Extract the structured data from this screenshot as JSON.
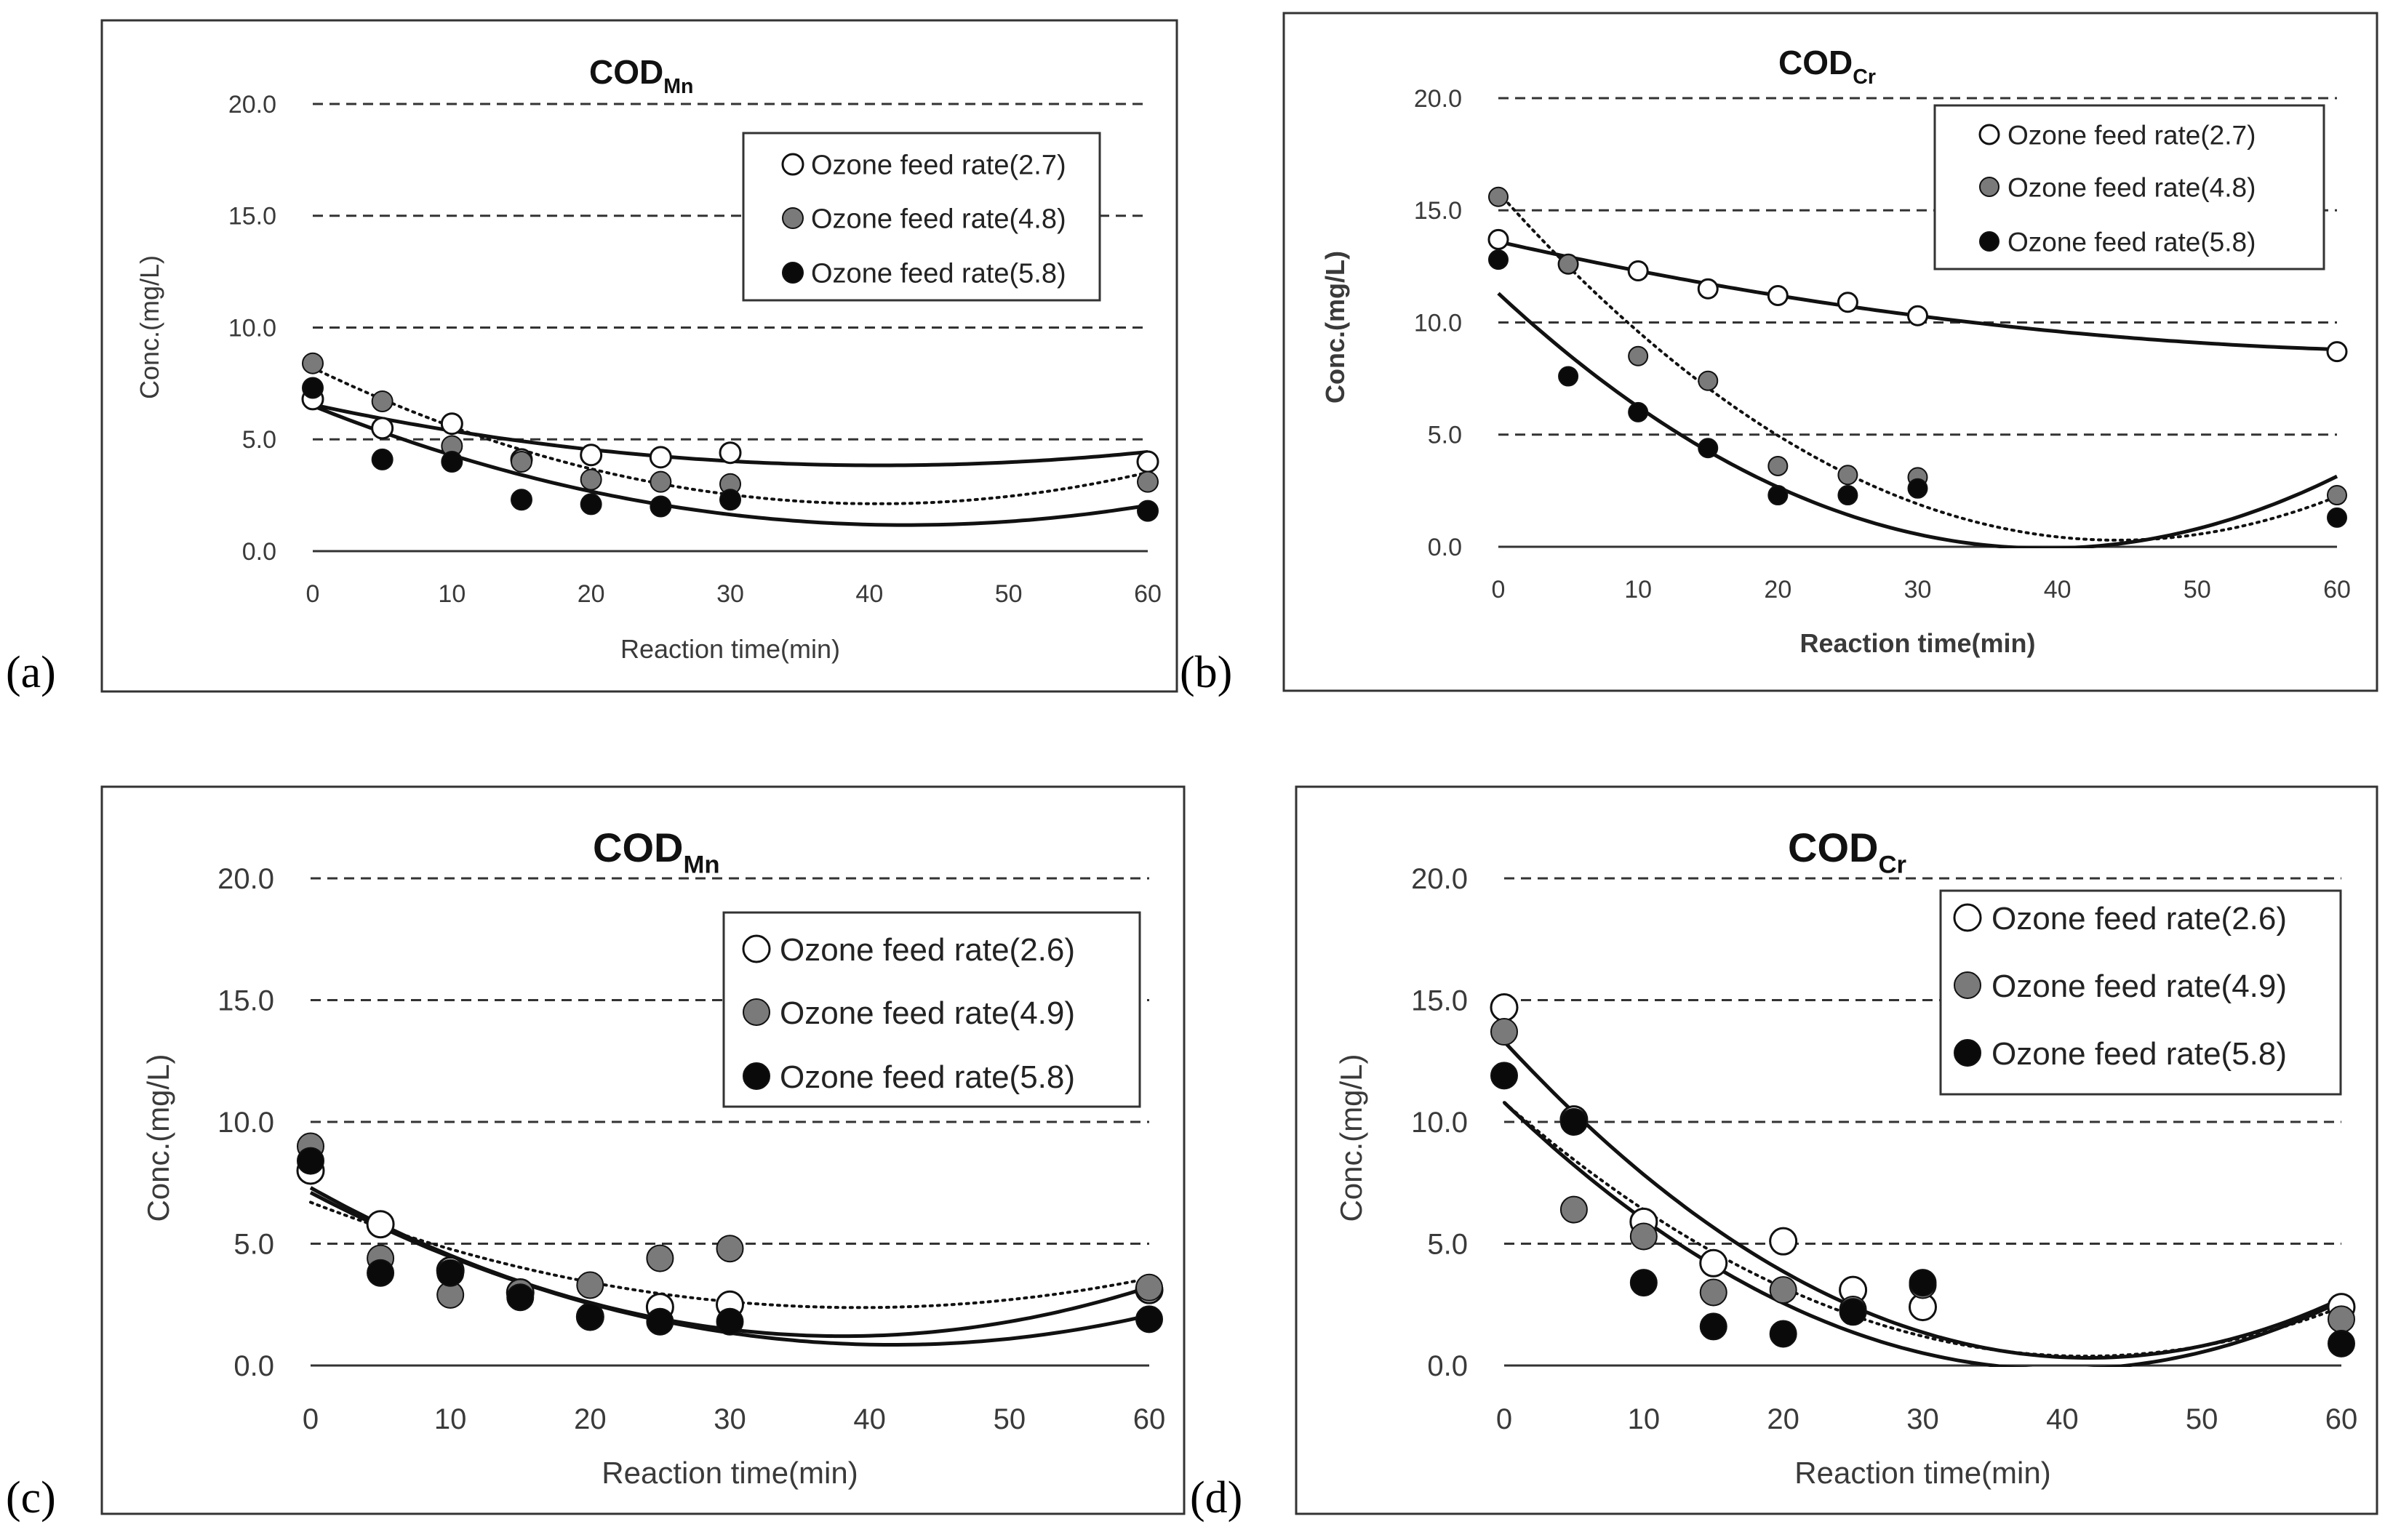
{
  "colors": {
    "open_marker_fill": "#ffffff",
    "gray_marker_fill": "#7a7a7a",
    "black_marker_fill": "#0a0a0a",
    "marker_stroke": "#111111",
    "fit_line": "#111111"
  },
  "chart_data": [
    {
      "panel": "(a)",
      "type": "scatter",
      "title_main": "COD",
      "title_sub": "Mn",
      "xlabel": "Reaction time(min)",
      "ylabel": "Conc.(mg/L)",
      "x_ticks": [
        "0",
        "10",
        "20",
        "30",
        "40",
        "50",
        "60"
      ],
      "y_ticks": [
        "0.0",
        "5.0",
        "10.0",
        "15.0",
        "20.0"
      ],
      "xlim": [
        0,
        60
      ],
      "ylim": [
        0,
        20
      ],
      "grid": true,
      "legend_position": "top-right",
      "x": [
        0,
        5,
        10,
        15,
        20,
        25,
        30,
        60
      ],
      "series": [
        {
          "name": "Ozone feed rate(2.7)",
          "marker": "open",
          "values": [
            6.8,
            5.5,
            5.7,
            4.1,
            4.3,
            4.2,
            4.4,
            4.0
          ],
          "fit": {
            "style": "solid",
            "coef": [
              6.55,
              -0.133,
              0.00163
            ]
          }
        },
        {
          "name": "Ozone feed rate(4.8)",
          "marker": "gray",
          "values": [
            8.4,
            6.7,
            4.7,
            4.0,
            3.2,
            3.1,
            3.0,
            3.1
          ],
          "fit": {
            "style": "dotted",
            "coef": [
              8.2,
              -0.3,
              0.0037
            ]
          }
        },
        {
          "name": "Ozone feed rate(5.8)",
          "marker": "black",
          "values": [
            7.3,
            4.1,
            4.0,
            2.3,
            2.1,
            2.0,
            2.3,
            1.8
          ],
          "fit": {
            "style": "solid",
            "coef": [
              6.5,
              -0.25,
              0.00293
            ]
          }
        }
      ]
    },
    {
      "panel": "(b)",
      "type": "scatter",
      "title_main": "COD",
      "title_sub": "Cr",
      "xlabel": "Reaction time(min)",
      "ylabel": "Conc.(mg/L)",
      "x_ticks": [
        "0",
        "10",
        "20",
        "30",
        "40",
        "50",
        "60"
      ],
      "y_ticks": [
        "0.0",
        "5.0",
        "10.0",
        "15.0",
        "20.0"
      ],
      "xlim": [
        0,
        60
      ],
      "ylim": [
        0,
        20
      ],
      "grid": true,
      "legend_position": "top-right",
      "x": [
        0,
        5,
        10,
        15,
        20,
        25,
        30,
        60
      ],
      "series": [
        {
          "name": "Ozone feed rate(2.7)",
          "marker": "open",
          "values": [
            13.7,
            12.6,
            12.3,
            11.5,
            11.2,
            10.9,
            10.3,
            8.7
          ],
          "fit": {
            "style": "solid",
            "coef": [
              13.6,
              -0.14,
              0.001
            ]
          }
        },
        {
          "name": "Ozone feed rate(4.8)",
          "marker": "gray",
          "values": [
            15.6,
            12.6,
            8.5,
            7.4,
            3.6,
            3.2,
            3.1,
            2.3
          ],
          "fit": {
            "style": "dotted",
            "coef": [
              15.8,
              -0.7,
              0.0079
            ]
          }
        },
        {
          "name": "Ozone feed rate(5.8)",
          "marker": "black",
          "values": [
            12.8,
            7.6,
            6.0,
            4.4,
            2.3,
            2.3,
            2.6,
            1.3
          ],
          "fit": {
            "style": "solid",
            "coef": [
              11.3,
              -0.58,
              0.0074
            ]
          }
        }
      ]
    },
    {
      "panel": "(c)",
      "type": "scatter",
      "title_main": "COD",
      "title_sub": "Mn",
      "xlabel": "Reaction time(min)",
      "ylabel": "Conc.(mg/L)",
      "x_ticks": [
        "0",
        "10",
        "20",
        "30",
        "40",
        "50",
        "60"
      ],
      "y_ticks": [
        "0.0",
        "5.0",
        "10.0",
        "15.0",
        "20.0"
      ],
      "xlim": [
        0,
        60
      ],
      "ylim": [
        0,
        20
      ],
      "grid": true,
      "legend_position": "top-right",
      "x": [
        0,
        5,
        10,
        15,
        20,
        25,
        30,
        60
      ],
      "series": [
        {
          "name": "Ozone feed rate(2.6)",
          "marker": "open",
          "values": [
            8.0,
            5.8,
            3.9,
            3.0,
            2.0,
            2.4,
            2.5,
            3.1
          ],
          "fit": {
            "style": "solid",
            "coef": [
              7.3,
              -0.32,
              0.0042
            ]
          }
        },
        {
          "name": "Ozone feed rate(4.9)",
          "marker": "gray",
          "values": [
            9.0,
            4.4,
            2.9,
            3.0,
            3.3,
            4.4,
            4.8,
            3.2
          ],
          "fit": {
            "style": "dotted",
            "coef": [
              6.7,
              -0.22,
              0.0028
            ]
          }
        },
        {
          "name": "Ozone feed rate(5.8)",
          "marker": "black",
          "values": [
            8.4,
            3.8,
            3.8,
            2.8,
            2.0,
            1.8,
            1.8,
            1.9
          ],
          "fit": {
            "style": "solid",
            "coef": [
              7.1,
              -0.3,
              0.0036
            ]
          }
        }
      ]
    },
    {
      "panel": "(d)",
      "type": "scatter",
      "title_main": "COD",
      "title_sub": "Cr",
      "xlabel": "Reaction time(min)",
      "ylabel": "Conc.(mg/L)",
      "x_ticks": [
        "0",
        "10",
        "20",
        "30",
        "40",
        "50",
        "60"
      ],
      "y_ticks": [
        "0.0",
        "5.0",
        "10.0",
        "15.0",
        "20.0"
      ],
      "xlim": [
        0,
        60
      ],
      "ylim": [
        0,
        20
      ],
      "grid": true,
      "legend_position": "top-right",
      "x": [
        0,
        5,
        10,
        15,
        20,
        25,
        30,
        60
      ],
      "series": [
        {
          "name": "Ozone feed rate(2.6)",
          "marker": "open",
          "values": [
            14.7,
            10.1,
            5.9,
            4.2,
            5.1,
            3.1,
            2.4,
            2.4
          ],
          "fit": {
            "style": "solid",
            "coef": [
              13.3,
              -0.62,
              0.0074
            ]
          }
        },
        {
          "name": "Ozone feed rate(4.9)",
          "marker": "gray",
          "values": [
            13.7,
            6.4,
            5.3,
            3.0,
            3.1,
            2.3,
            3.3,
            1.9
          ],
          "fit": {
            "style": "dotted",
            "coef": [
              10.8,
              -0.5,
              0.006
            ]
          }
        },
        {
          "name": "Ozone feed rate(5.8)",
          "marker": "black",
          "values": [
            11.9,
            10.0,
            3.4,
            1.6,
            1.3,
            2.2,
            3.4,
            0.9
          ],
          "fit": {
            "style": "solid",
            "coef": [
              10.8,
              -0.55,
              0.0069
            ]
          }
        }
      ]
    }
  ]
}
